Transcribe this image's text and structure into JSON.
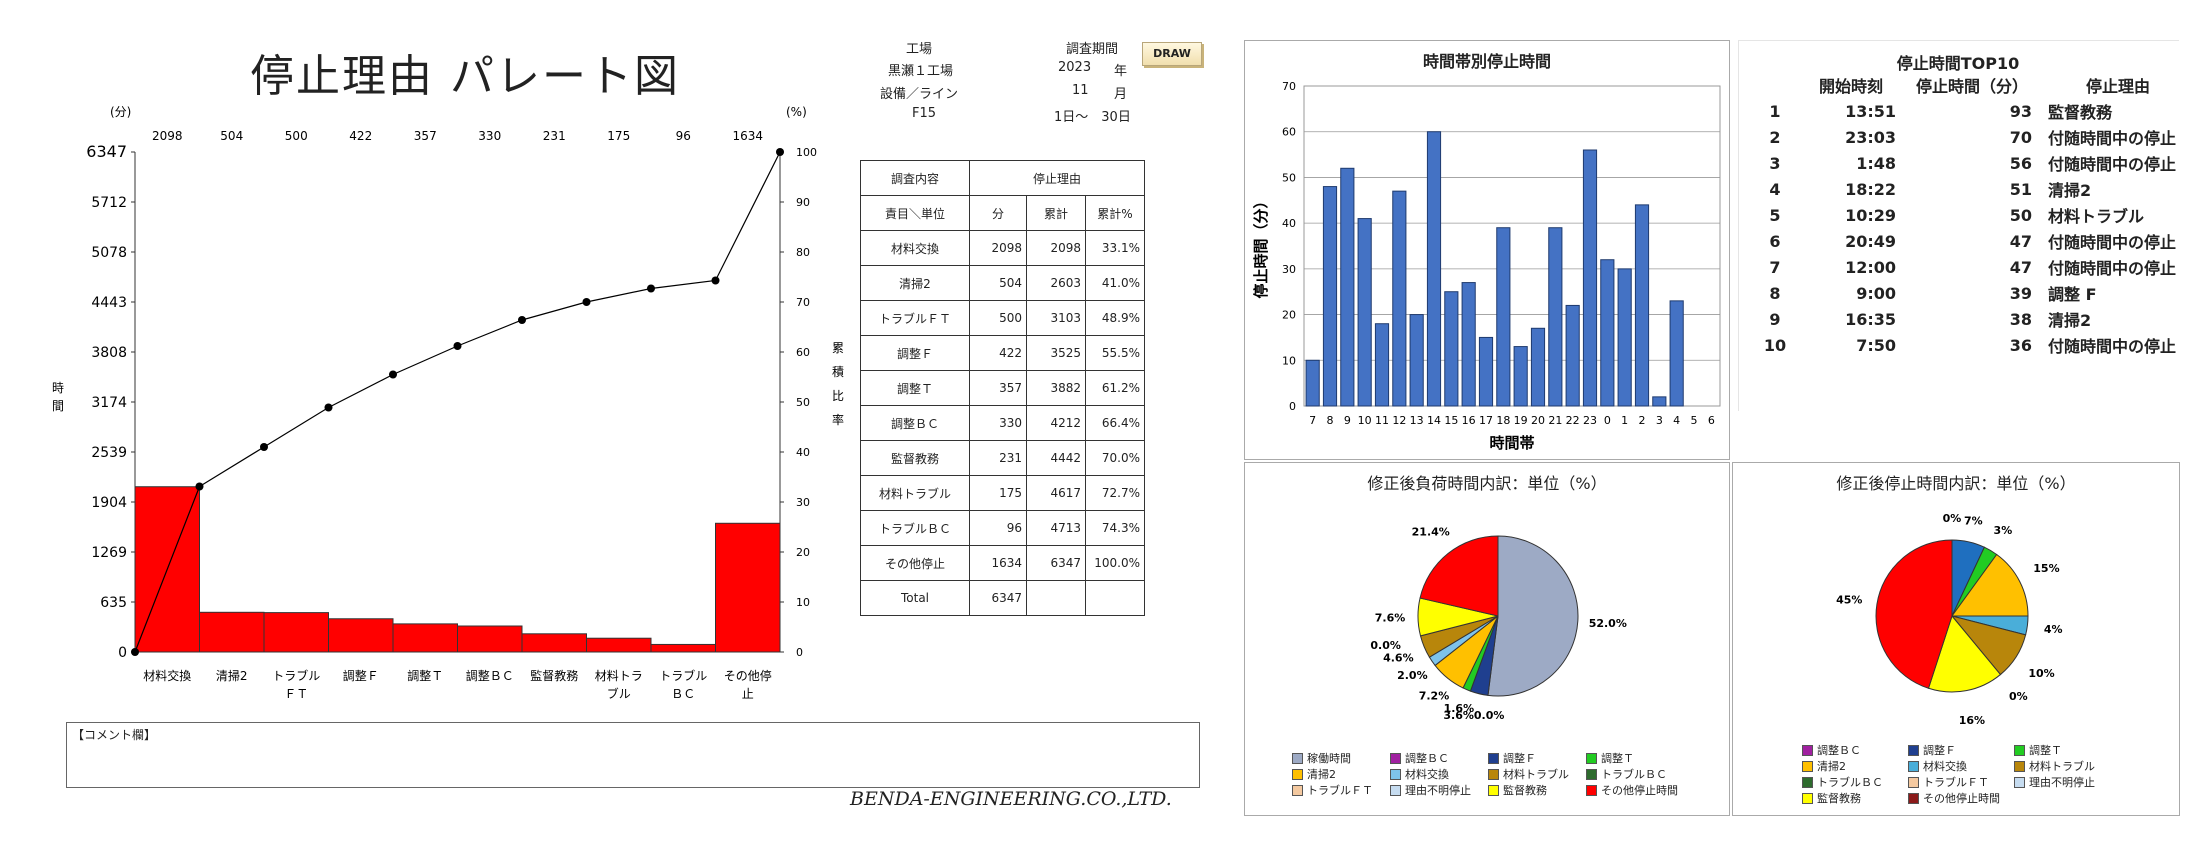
{
  "pareto": {
    "title": "停止理由 パレート図",
    "unit_left": "(分)",
    "unit_right": "(%)",
    "ylabel": "時間",
    "y2label": "累積比率",
    "comment_label": "【コメント欄】",
    "company": "BENDA-ENGINEERING.CO.,LTD."
  },
  "info": {
    "factory_label": "工場",
    "factory_value": "黒瀬１工場",
    "line_label": "設備／ライン",
    "line_value": "F15",
    "period_label": "調査期間",
    "year": "2023",
    "year_unit": "年",
    "month": "11",
    "month_unit": "月",
    "days": "1日～　30日",
    "draw_button": "DRAW"
  },
  "summary_table": {
    "head1_left": "調査内容",
    "head1_right": "停止理由",
    "head2": [
      "責目＼単位",
      "分",
      "累計",
      "累計%"
    ],
    "rows": [
      [
        "材料交換",
        "2098",
        "2098",
        "33.1%"
      ],
      [
        "清掃2",
        "504",
        "2603",
        "41.0%"
      ],
      [
        "トラブルＦＴ",
        "500",
        "3103",
        "48.9%"
      ],
      [
        "調整Ｆ",
        "422",
        "3525",
        "55.5%"
      ],
      [
        "調整Ｔ",
        "357",
        "3882",
        "61.2%"
      ],
      [
        "調整ＢＣ",
        "330",
        "4212",
        "66.4%"
      ],
      [
        "監督教務",
        "231",
        "4442",
        "70.0%"
      ],
      [
        "材料トラブル",
        "175",
        "4617",
        "72.7%"
      ],
      [
        "トラブルＢＣ",
        "96",
        "4713",
        "74.3%"
      ],
      [
        "その他停止",
        "1634",
        "6347",
        "100.0%"
      ],
      [
        "Total",
        "6347",
        "",
        ""
      ]
    ]
  },
  "top10": {
    "title": "停止時間TOP10",
    "headers": [
      "開始時刻",
      "停止時間（分）",
      "停止理由"
    ],
    "rows": [
      [
        "1",
        "13:51",
        "93",
        "監督教務"
      ],
      [
        "2",
        "23:03",
        "70",
        "付随時間中の停止"
      ],
      [
        "3",
        "1:48",
        "56",
        "付随時間中の停止"
      ],
      [
        "4",
        "18:22",
        "51",
        "清掃2"
      ],
      [
        "5",
        "10:29",
        "50",
        "材料トラブル"
      ],
      [
        "6",
        "20:49",
        "47",
        "付随時間中の停止"
      ],
      [
        "7",
        "12:00",
        "47",
        "付随時間中の停止"
      ],
      [
        "8",
        "9:00",
        "39",
        "調整 F"
      ],
      [
        "9",
        "16:35",
        "38",
        "清掃2"
      ],
      [
        "10",
        "7:50",
        "36",
        "付随時間中の停止"
      ]
    ]
  },
  "chart_data": [
    {
      "type": "bar",
      "subtype": "pareto",
      "categories": [
        "材料交換",
        "清掃2",
        "トラブルＦＴ",
        "調整Ｆ",
        "調整Ｔ",
        "調整ＢＣ",
        "監督教務",
        "材料トラブル",
        "トラブルＢＣ",
        "その他停止"
      ],
      "category_lines": [
        [
          "材料交換"
        ],
        [
          "清掃2"
        ],
        [
          "トラブル",
          "ＦＴ"
        ],
        [
          "調整Ｆ"
        ],
        [
          "調整Ｔ"
        ],
        [
          "調整ＢＣ"
        ],
        [
          "監督教務"
        ],
        [
          "材料トラ",
          "ブル"
        ],
        [
          "トラブル",
          "ＢＣ"
        ],
        [
          "その他停",
          "止"
        ]
      ],
      "values": [
        2098,
        504,
        500,
        422,
        357,
        330,
        231,
        175,
        96,
        1634
      ],
      "value_labels": [
        "2098",
        "504",
        "500",
        "422",
        "357",
        "330",
        "231",
        "175",
        "96",
        "1634"
      ],
      "cumulative_pct": [
        0,
        33.1,
        41.0,
        48.9,
        55.5,
        61.2,
        66.4,
        70.0,
        72.7,
        74.3,
        100.0
      ],
      "ylim": [
        0,
        6347
      ],
      "yticks": [
        "0",
        "635",
        "1269",
        "1904",
        "2539",
        "3174",
        "3808",
        "4443",
        "5078",
        "5712",
        "6347"
      ],
      "y2lim": [
        0,
        100
      ],
      "y2ticks": [
        "0",
        "10",
        "20",
        "30",
        "40",
        "50",
        "60",
        "70",
        "80",
        "90",
        "100"
      ],
      "bar_color": "#ff0000"
    },
    {
      "type": "bar",
      "title": "時間帯別停止時間",
      "xlabel": "時間帯",
      "ylabel": "停止時間（分）",
      "categories": [
        "7",
        "8",
        "9",
        "10",
        "11",
        "12",
        "13",
        "14",
        "15",
        "16",
        "17",
        "18",
        "19",
        "20",
        "21",
        "22",
        "23",
        "0",
        "1",
        "2",
        "3",
        "4",
        "5",
        "6"
      ],
      "values": [
        10,
        48,
        52,
        41,
        18,
        47,
        20,
        60,
        25,
        27,
        15,
        39,
        13,
        17,
        39,
        22,
        56,
        32,
        30,
        44,
        2,
        23,
        0,
        0
      ],
      "ylim": [
        0,
        70
      ],
      "yticks": [
        "0",
        "10",
        "20",
        "30",
        "40",
        "50",
        "60",
        "70"
      ],
      "bar_color": "#4472c4"
    },
    {
      "type": "pie",
      "title": "修正後負荷時間内訳：単位（%）",
      "slices": [
        {
          "name": "稼働時間",
          "value": 52.0,
          "color": "#9daac5",
          "label": "52.0%"
        },
        {
          "name": "調整ＢＣ",
          "value": 0.0,
          "color": "#a020a0",
          "label": ""
        },
        {
          "name": "調整Ｆ",
          "value": 3.6,
          "color": "#1f3f8f",
          "label": "3.6%0.0%"
        },
        {
          "name": "調整Ｔ",
          "value": 1.6,
          "color": "#22cc22",
          "label": "1.6%"
        },
        {
          "name": "清掃2",
          "value": 7.2,
          "color": "#ffc000",
          "label": "7.2%"
        },
        {
          "name": "材料交換",
          "value": 2.0,
          "color": "#7ec3ea",
          "label": "2.0%"
        },
        {
          "name": "材料トラブル",
          "value": 4.6,
          "color": "#b8860b",
          "label": "4.6%"
        },
        {
          "name": "トラブルＢＣ",
          "value": 0.0,
          "color": "#2e6b2e",
          "label": "0.0%"
        },
        {
          "name": "トラブルＦＴ",
          "value": 0.0,
          "color": "#f4c9a0",
          "label": ""
        },
        {
          "name": "理由不明停止",
          "value": 0.0,
          "color": "#c6dcf0",
          "label": ""
        },
        {
          "name": "監督教務",
          "value": 7.6,
          "color": "#ffff00",
          "label": "7.6%"
        },
        {
          "name": "その他停止時間",
          "value": 21.4,
          "color": "#ff0000",
          "label": "21.4%"
        }
      ],
      "legend": [
        "稼働時間",
        "調整ＢＣ",
        "調整Ｆ",
        "調整Ｔ",
        "清掃2",
        "材料交換",
        "材料トラブル",
        "トラブルＢＣ",
        "トラブルＦＴ",
        "理由不明停止",
        "監督教務",
        "その他停止時間"
      ]
    },
    {
      "type": "pie",
      "title": "修正後停止時間内訳：単位（%）",
      "slices": [
        {
          "name": "調整ＢＣ",
          "value": 0,
          "color": "#a020a0",
          "label": "0%"
        },
        {
          "name": "調整Ｆ",
          "value": 7,
          "color": "#1f6fbf",
          "label": "7%"
        },
        {
          "name": "調整Ｔ",
          "value": 3,
          "color": "#22cc22",
          "label": "3%"
        },
        {
          "name": "清掃2",
          "value": 15,
          "color": "#ffc000",
          "label": "15%"
        },
        {
          "name": "材料交換",
          "value": 4,
          "color": "#4aaed9",
          "label": "4%"
        },
        {
          "name": "材料トラブル",
          "value": 10,
          "color": "#b8860b",
          "label": "10%"
        },
        {
          "name": "トラブルＢＣ",
          "value": 0,
          "color": "#2e6b2e",
          "label": "0%"
        },
        {
          "name": "監督教務",
          "value": 16,
          "color": "#ffff00",
          "label": "16%"
        },
        {
          "name": "その他停止時間",
          "value": 45,
          "color": "#ff0000",
          "label": "45%"
        }
      ],
      "legend": [
        "調整ＢＣ",
        "調整Ｆ",
        "調整Ｔ",
        "清掃2",
        "材料交換",
        "材料トラブル",
        "トラブルＢＣ",
        "トラブルＦＴ",
        "理由不明停止",
        "監督教務",
        "その他停止時間"
      ],
      "legend_colors": [
        "#a020a0",
        "#1f3f8f",
        "#22cc22",
        "#ffc000",
        "#4aaed9",
        "#b8860b",
        "#2e6b2e",
        "#f4c9a0",
        "#c6dcf0",
        "#ffff00",
        "#8b1a1a"
      ]
    }
  ]
}
